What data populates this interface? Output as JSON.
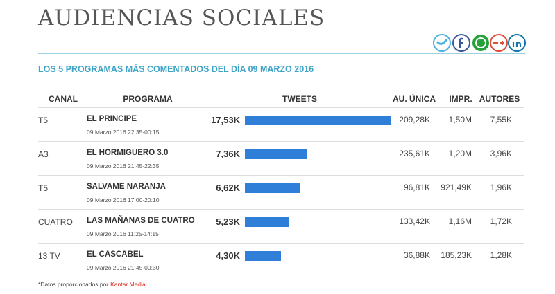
{
  "header": {
    "title": "AUDIENCIAS SOCIALES"
  },
  "subtitle": "LOS 5 PROGRAMAS MÁS COMENTADOS DEL DÍA 09 MARZO 2016",
  "table": {
    "columns": [
      "CANAL",
      "PROGRAMA",
      "TWEETS",
      "AU. ÚNICA",
      "IMPR.",
      "AUTORES"
    ],
    "rows": [
      {
        "canal": "T5",
        "programa": "EL PRINCIPE",
        "fecha": "09 Marzo 2016 22:35-00:15",
        "tweets": {
          "value": 17530,
          "label": "17,53K"
        },
        "au_unica": "209,28K",
        "impr": "1,50M",
        "autores": "7,55K"
      },
      {
        "canal": "A3",
        "programa": "EL HORMIGUERO 3.0",
        "fecha": "09 Marzo 2016 21:45-22:35",
        "tweets": {
          "value": 7360,
          "label": "7,36K"
        },
        "au_unica": "235,61K",
        "impr": "1,20M",
        "autores": "3,96K"
      },
      {
        "canal": "T5",
        "programa": "SALVAME NARANJA",
        "fecha": "09 Marzo 2016 17:00-20:10",
        "tweets": {
          "value": 6620,
          "label": "6,62K"
        },
        "au_unica": "96,81K",
        "impr": "921,49K",
        "autores": "1,96K"
      },
      {
        "canal": "CUATRO",
        "programa": "LAS MAÑANAS DE CUATRO",
        "fecha": "09 Marzo 2016 11:25-14:15",
        "tweets": {
          "value": 5230,
          "label": "5,23K"
        },
        "au_unica": "133,42K",
        "impr": "1,16M",
        "autores": "1,72K"
      },
      {
        "canal": "13 TV",
        "programa": "EL CASCABEL",
        "fecha": "09 Marzo 2016 21:45-00:30",
        "tweets": {
          "value": 4300,
          "label": "4,30K"
        },
        "au_unica": "36,88K",
        "impr": "185,23K",
        "autores": "1,28K"
      }
    ]
  },
  "footer": {
    "text": "*Datos proporcionados por",
    "source": "Kantar Media"
  }
}
